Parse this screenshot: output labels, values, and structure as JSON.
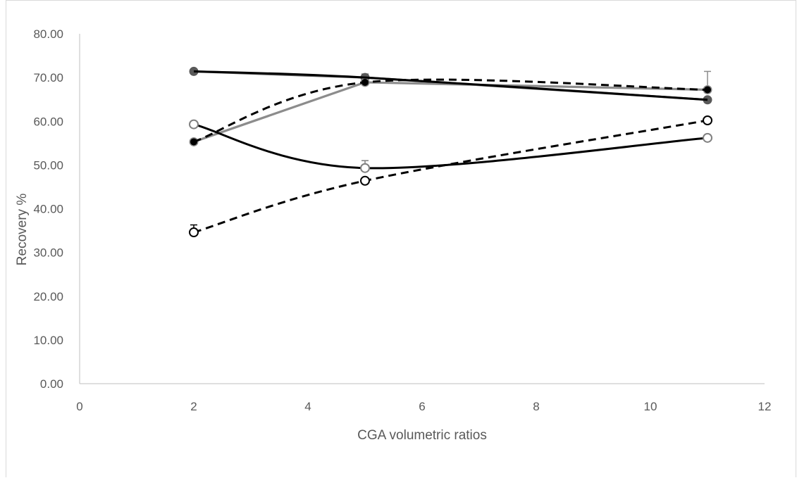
{
  "chart_data": {
    "type": "line",
    "title": "",
    "xlabel": "CGA volumetric ratios",
    "ylabel": "Recovery %",
    "xlim": [
      0,
      12
    ],
    "ylim": [
      0,
      80
    ],
    "x_ticks": [
      "0",
      "2",
      "4",
      "6",
      "8",
      "10",
      "12"
    ],
    "y_ticks": [
      "0.00",
      "10.00",
      "20.00",
      "30.00",
      "40.00",
      "50.00",
      "60.00",
      "70.00",
      "80.00"
    ],
    "grid": false,
    "legend": "none",
    "series": [
      {
        "x": [
          2,
          5,
          11
        ],
        "y": [
          71.4,
          70.0,
          64.9
        ],
        "error": [
          0.3,
          0.8,
          0.3
        ],
        "line_color": "#595959",
        "line_style": "solid",
        "marker": "filled-circle",
        "marker_color": "#595959"
      },
      {
        "x": [
          2,
          5,
          11
        ],
        "y": [
          55.3,
          68.9,
          67.2
        ],
        "error": [
          0.0,
          1.0,
          4.2
        ],
        "line_color": "#8c8c8c",
        "line_style": "solid",
        "marker": "filled-circle",
        "marker_color": "#8c8c8c"
      },
      {
        "x": [
          2,
          5,
          11
        ],
        "y": [
          71.4,
          70.0,
          64.9
        ],
        "error": [
          0.0,
          0.0,
          0.0
        ],
        "line_color": "#000000",
        "line_style": "solid-smooth",
        "marker": "none",
        "marker_color": "#000000"
      },
      {
        "x": [
          2,
          5,
          11
        ],
        "y": [
          55.3,
          68.9,
          67.2
        ],
        "error": [
          0.0,
          0.0,
          0.0
        ],
        "line_color": "#000000",
        "line_style": "dashed-smooth",
        "marker": "filled-circle",
        "marker_color": "#000000"
      },
      {
        "x": [
          2,
          5,
          11
        ],
        "y": [
          59.3,
          49.3,
          56.2
        ],
        "error": [
          0.3,
          1.7,
          0.3
        ],
        "line_color": "#000000",
        "line_style": "solid-smooth",
        "marker": "open-circle",
        "marker_color": "#808080"
      },
      {
        "x": [
          2,
          5,
          11
        ],
        "y": [
          34.6,
          46.4,
          60.2
        ],
        "error": [
          1.7,
          0.3,
          0.3
        ],
        "line_color": "#000000",
        "line_style": "dashed-smooth",
        "marker": "open-circle",
        "marker_color": "#000000"
      }
    ]
  }
}
